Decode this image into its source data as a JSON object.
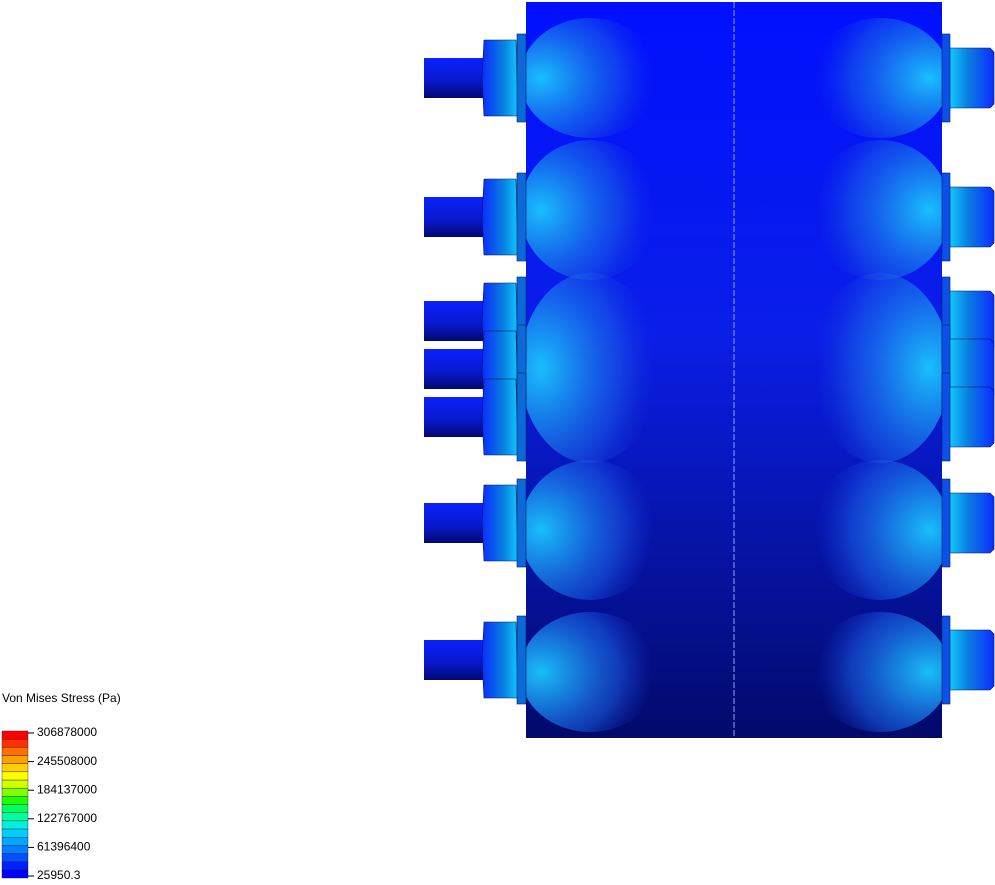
{
  "legend": {
    "title": "Von Mises Stress (Pa)",
    "ticks": [
      306878000,
      245508000,
      184137000,
      122767000,
      61396400,
      25950.3
    ]
  }
}
